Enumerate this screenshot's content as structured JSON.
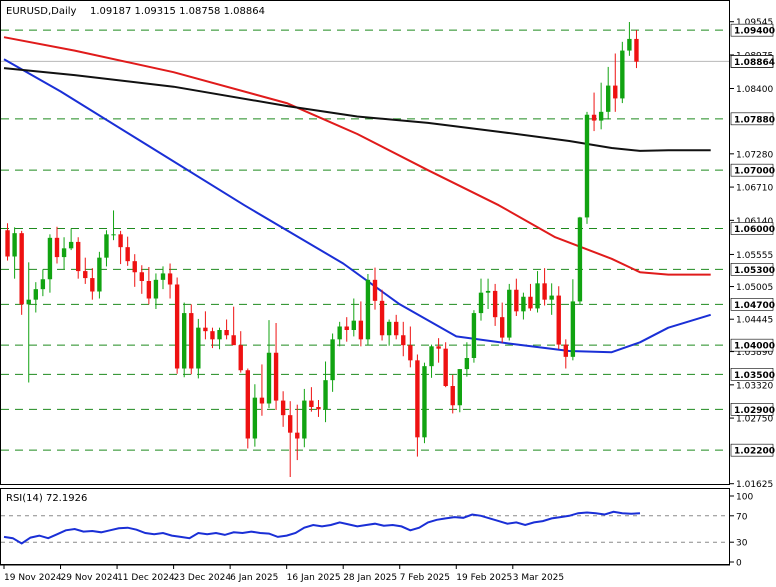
{
  "header": {
    "symbol": "EURUSD,Daily",
    "ohlc": "1.09187 1.09315 1.08758 1.08864"
  },
  "colors": {
    "bull": "#11a311",
    "bear": "#ee1111",
    "ma_fast": "#1a2fd6",
    "ma_mid": "#e01b1b",
    "ma_slow": "#111111",
    "level_line": "#1e8a1e",
    "rsi_line": "#1a2fd6"
  },
  "chart_data": [
    {
      "type": "candlestick",
      "name": "EURUSD Daily",
      "price_axis": {
        "range": [
          1.0162,
          1.0954
        ],
        "ticks": [
          "1.09545",
          "1.08975",
          "1.08400",
          "1.07280",
          "1.06710",
          "1.06140",
          "1.05555",
          "1.05005",
          "1.04445",
          "1.03890",
          "1.03320",
          "1.02750",
          "1.01625"
        ]
      },
      "horizontal_levels": [
        "1.09400",
        "1.07880",
        "1.07000",
        "1.06000",
        "1.05300",
        "1.04700",
        "1.04000",
        "1.03500",
        "1.02900",
        "1.02200"
      ],
      "current_price": "1.08864",
      "x_labels": [
        "19 Nov 2024",
        "29 Nov 2024",
        "11 Dec 2024",
        "23 Dec 2024",
        "6 Jan 2025",
        "16 Jan 2025",
        "28 Jan 2025",
        "7 Feb 2025",
        "19 Feb 2025",
        "3 Mar 2025"
      ],
      "candles": [
        [
          1.0597,
          1.0609,
          1.0545,
          1.0552
        ],
        [
          1.0552,
          1.0602,
          1.0514,
          1.0592
        ],
        [
          1.0592,
          1.0596,
          1.0452,
          1.047
        ],
        [
          1.047,
          1.0542,
          1.0336,
          1.0478
        ],
        [
          1.0478,
          1.0508,
          1.0456,
          1.0496
        ],
        [
          1.0496,
          1.053,
          1.0484,
          1.0513
        ],
        [
          1.0513,
          1.059,
          1.049,
          1.0584
        ],
        [
          1.0584,
          1.0603,
          1.054,
          1.0551
        ],
        [
          1.0551,
          1.0585,
          1.053,
          1.0566
        ],
        [
          1.0566,
          1.06,
          1.0563,
          1.0577
        ],
        [
          1.0577,
          1.0585,
          1.0514,
          1.0527
        ],
        [
          1.0527,
          1.055,
          1.0505,
          1.0515
        ],
        [
          1.0515,
          1.0532,
          1.0478,
          1.0492
        ],
        [
          1.0492,
          1.056,
          1.048,
          1.055
        ],
        [
          1.055,
          1.0597,
          1.0535,
          1.059
        ],
        [
          1.059,
          1.0631,
          1.058,
          1.059
        ],
        [
          1.059,
          1.0596,
          1.0539,
          1.0568
        ],
        [
          1.0568,
          1.0586,
          1.0536,
          1.0544
        ],
        [
          1.0544,
          1.0556,
          1.05,
          1.0525
        ],
        [
          1.0525,
          1.0537,
          1.0488,
          1.051
        ],
        [
          1.051,
          1.0534,
          1.047,
          1.048
        ],
        [
          1.048,
          1.0523,
          1.0462,
          1.0512
        ],
        [
          1.0512,
          1.0535,
          1.0496,
          1.0523
        ],
        [
          1.0523,
          1.054,
          1.048,
          1.0504
        ],
        [
          1.0504,
          1.0516,
          1.0351,
          1.036
        ],
        [
          1.036,
          1.0473,
          1.0345,
          1.0455
        ],
        [
          1.0455,
          1.047,
          1.035,
          1.036
        ],
        [
          1.036,
          1.0445,
          1.0343,
          1.043
        ],
        [
          1.043,
          1.0458,
          1.041,
          1.0424
        ],
        [
          1.0424,
          1.043,
          1.0395,
          1.041
        ],
        [
          1.041,
          1.043,
          1.0393,
          1.0426
        ],
        [
          1.0426,
          1.0444,
          1.041,
          1.0417
        ],
        [
          1.0417,
          1.0466,
          1.0404,
          1.04
        ],
        [
          1.04,
          1.0424,
          1.0353,
          1.0357
        ],
        [
          1.0357,
          1.036,
          1.0223,
          1.024
        ],
        [
          1.024,
          1.0333,
          1.0226,
          1.031
        ],
        [
          1.031,
          1.0367,
          1.0279,
          1.03
        ],
        [
          1.03,
          1.0443,
          1.0292,
          1.0387
        ],
        [
          1.0387,
          1.0438,
          1.0289,
          1.0305
        ],
        [
          1.0305,
          1.0321,
          1.026,
          1.028
        ],
        [
          1.028,
          1.0304,
          1.0174,
          1.025
        ],
        [
          1.025,
          1.0298,
          1.0203,
          1.024
        ],
        [
          1.024,
          1.0325,
          1.0225,
          1.0305
        ],
        [
          1.0305,
          1.0328,
          1.0286,
          1.0294
        ],
        [
          1.0294,
          1.0306,
          1.0277,
          1.029
        ],
        [
          1.029,
          1.0372,
          1.0268,
          1.034
        ],
        [
          1.034,
          1.042,
          1.032,
          1.041
        ],
        [
          1.041,
          1.044,
          1.0398,
          1.0432
        ],
        [
          1.0432,
          1.0448,
          1.0406,
          1.0426
        ],
        [
          1.0426,
          1.048,
          1.0415,
          1.0442
        ],
        [
          1.0442,
          1.0475,
          1.0398,
          1.041
        ],
        [
          1.041,
          1.0522,
          1.04,
          1.0512
        ],
        [
          1.0512,
          1.0533,
          1.0461,
          1.0476
        ],
        [
          1.0476,
          1.0495,
          1.0408,
          1.0417
        ],
        [
          1.0417,
          1.0444,
          1.0399,
          1.044
        ],
        [
          1.044,
          1.0452,
          1.041,
          1.0417
        ],
        [
          1.0417,
          1.044,
          1.0381,
          1.04
        ],
        [
          1.04,
          1.0432,
          1.0362,
          1.0374
        ],
        [
          1.0374,
          1.0384,
          1.0209,
          1.0242
        ],
        [
          1.0242,
          1.037,
          1.0232,
          1.0364
        ],
        [
          1.0364,
          1.0401,
          1.0344,
          1.0398
        ],
        [
          1.0398,
          1.0412,
          1.037,
          1.0394
        ],
        [
          1.0394,
          1.0405,
          1.0328,
          1.033
        ],
        [
          1.033,
          1.0349,
          1.0283,
          1.0297
        ],
        [
          1.0297,
          1.0359,
          1.0285,
          1.0359
        ],
        [
          1.0359,
          1.0405,
          1.0346,
          1.0378
        ],
        [
          1.0378,
          1.046,
          1.037,
          1.0455
        ],
        [
          1.0455,
          1.0514,
          1.0442,
          1.049
        ],
        [
          1.049,
          1.0514,
          1.0462,
          1.0493
        ],
        [
          1.0493,
          1.0505,
          1.0433,
          1.0448
        ],
        [
          1.0448,
          1.0473,
          1.0404,
          1.0413
        ],
        [
          1.0413,
          1.0505,
          1.0408,
          1.0495
        ],
        [
          1.0495,
          1.0514,
          1.045,
          1.0458
        ],
        [
          1.0458,
          1.049,
          1.0444,
          1.0483
        ],
        [
          1.0483,
          1.0505,
          1.0459,
          1.0463
        ],
        [
          1.0463,
          1.0527,
          1.0456,
          1.0506
        ],
        [
          1.0506,
          1.0532,
          1.0468,
          1.0478
        ],
        [
          1.0478,
          1.0506,
          1.0452,
          1.0485
        ],
        [
          1.0485,
          1.0501,
          1.0393,
          1.0401
        ],
        [
          1.0401,
          1.041,
          1.036,
          1.038
        ],
        [
          1.038,
          1.0513,
          1.0374,
          1.0475
        ],
        [
          1.0475,
          1.062,
          1.047,
          1.0619
        ],
        [
          1.0619,
          1.08,
          1.0608,
          1.0795
        ],
        [
          1.0795,
          1.0833,
          1.0767,
          1.0785
        ],
        [
          1.0785,
          1.085,
          1.077,
          1.08
        ],
        [
          1.08,
          1.0877,
          1.0787,
          1.0845
        ],
        [
          1.0845,
          1.09,
          1.08,
          1.0823
        ],
        [
          1.0823,
          1.092,
          1.0815,
          1.0905
        ],
        [
          1.0905,
          1.0954,
          1.0896,
          1.0925
        ],
        [
          1.0925,
          1.094,
          1.0875,
          1.0886
        ]
      ],
      "moving_averages": [
        {
          "role": "ma_fast",
          "points": [
            [
              0,
              1.089
            ],
            [
              8,
              1.0835
            ],
            [
              20,
              1.0745
            ],
            [
              34,
              1.064
            ],
            [
              48,
              1.054
            ],
            [
              56,
              1.047
            ],
            [
              64,
              1.0415
            ],
            [
              72,
              1.0402
            ],
            [
              80,
              1.039
            ],
            [
              86,
              1.0388
            ],
            [
              90,
              1.0405
            ],
            [
              94,
              1.043
            ],
            [
              100,
              1.0452
            ]
          ]
        },
        {
          "role": "ma_mid",
          "points": [
            [
              0,
              1.0928
            ],
            [
              10,
              1.0905
            ],
            [
              24,
              1.0868
            ],
            [
              40,
              1.0815
            ],
            [
              50,
              1.0762
            ],
            [
              60,
              1.07
            ],
            [
              70,
              1.064
            ],
            [
              78,
              1.0585
            ],
            [
              86,
              1.0548
            ],
            [
              90,
              1.0525
            ],
            [
              94,
              1.0521
            ],
            [
              100,
              1.0521
            ]
          ]
        },
        {
          "role": "ma_slow",
          "points": [
            [
              0,
              1.0875
            ],
            [
              10,
              1.0863
            ],
            [
              24,
              1.0843
            ],
            [
              40,
              1.081
            ],
            [
              50,
              1.0792
            ],
            [
              60,
              1.0781
            ],
            [
              70,
              1.0766
            ],
            [
              80,
              1.075
            ],
            [
              86,
              1.0738
            ],
            [
              90,
              1.0733
            ],
            [
              94,
              1.0734
            ],
            [
              100,
              1.0734
            ]
          ]
        }
      ]
    },
    {
      "type": "line",
      "title": "RSI(14) 72.1926",
      "y_range": [
        0,
        100
      ],
      "ticks": [
        "100",
        "70",
        "30",
        "0"
      ],
      "levels": [
        70,
        30
      ],
      "series": [
        {
          "values": [
            38,
            36,
            28,
            37,
            40,
            36,
            42,
            48,
            50,
            46,
            47,
            45,
            48,
            51,
            52,
            49,
            44,
            42,
            44,
            40,
            38,
            36,
            44,
            42,
            44,
            41,
            45,
            44,
            46,
            44,
            43,
            38,
            40,
            44,
            52,
            56,
            54,
            56,
            60,
            57,
            54,
            56,
            58,
            55,
            56,
            54,
            48,
            52,
            60,
            64,
            66,
            68,
            67,
            72,
            70,
            66,
            62,
            58,
            60,
            56,
            60,
            62,
            66,
            68,
            70,
            74,
            75,
            74,
            72,
            76,
            74,
            73,
            74
          ]
        }
      ]
    }
  ]
}
